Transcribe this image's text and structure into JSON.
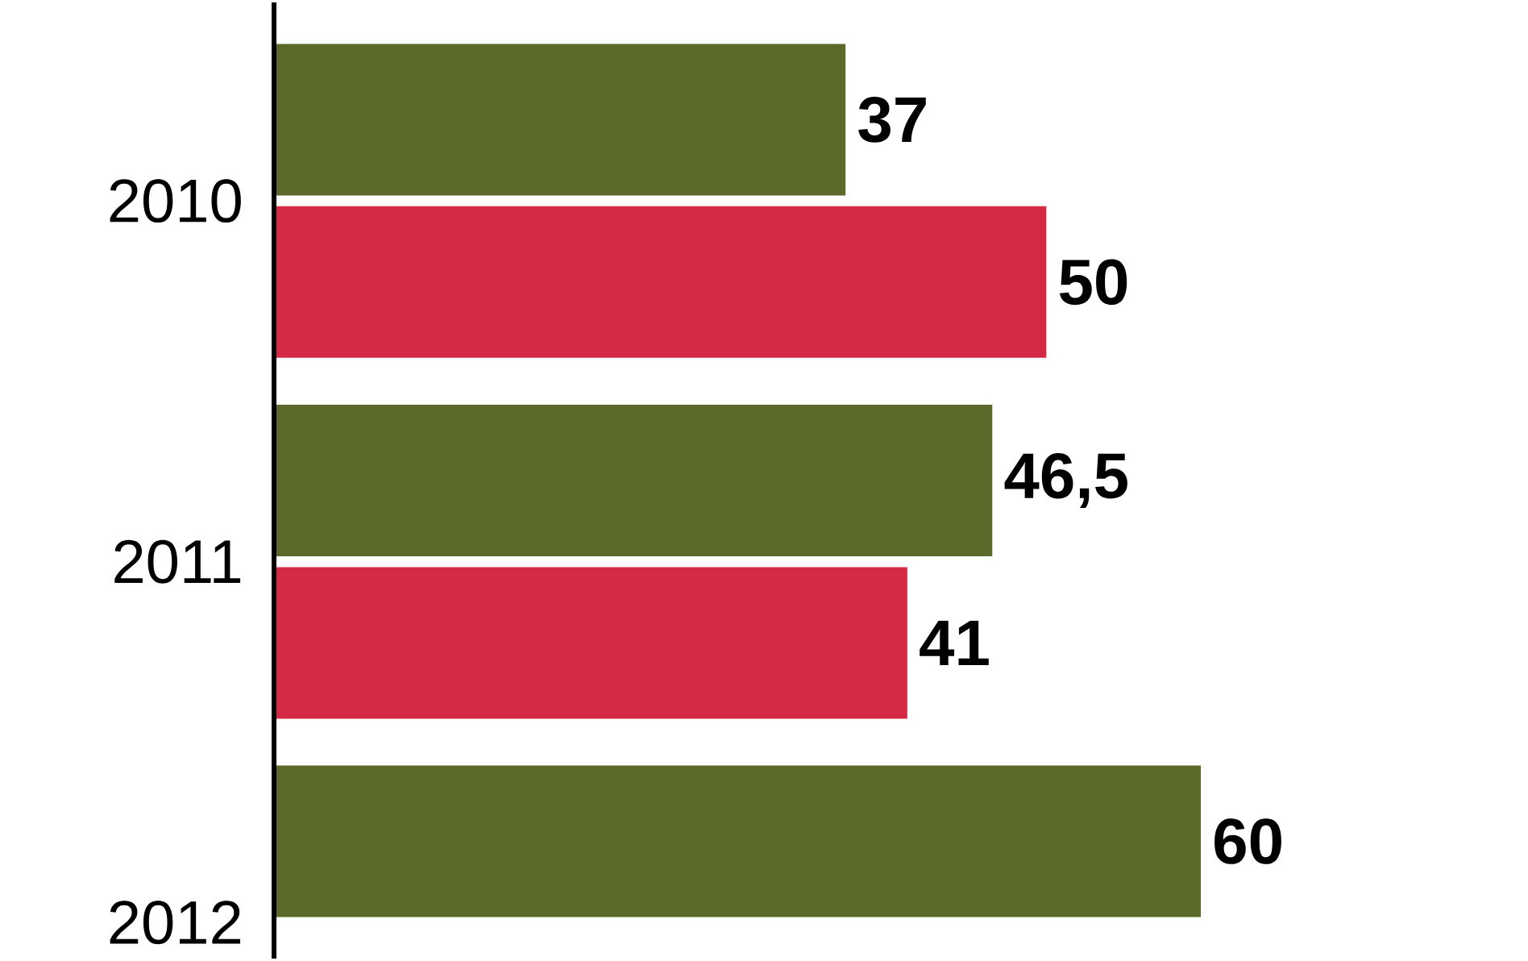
{
  "chart_data": {
    "type": "bar",
    "orientation": "horizontal",
    "categories": [
      "2010",
      "2011",
      "2012"
    ],
    "series": [
      {
        "color": "#5b6a2b",
        "values": [
          37,
          46.5,
          60
        ],
        "value_labels": [
          "37",
          "46,5",
          "60"
        ]
      },
      {
        "color": "#d42a45",
        "values": [
          50,
          41,
          null
        ],
        "value_labels": [
          "50",
          "41",
          null
        ]
      }
    ],
    "tick_labels": "y"
  }
}
